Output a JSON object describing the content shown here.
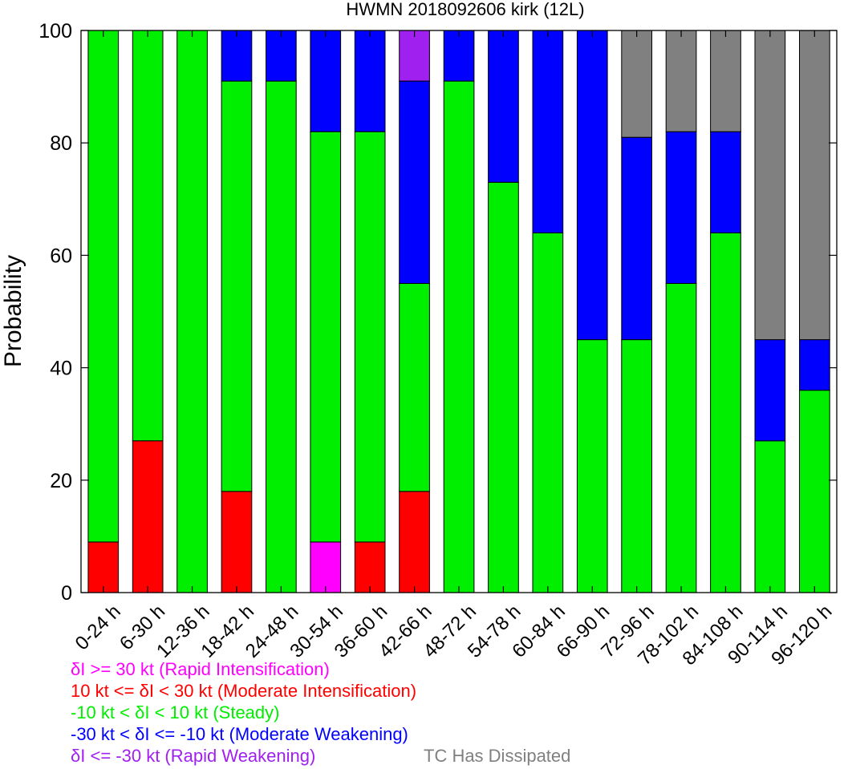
{
  "chart_data": {
    "type": "bar",
    "stacked": true,
    "title": "HWMN 2018092606 kirk (12L)",
    "xlabel": "",
    "ylabel": "Probability",
    "ylim": [
      0,
      100
    ],
    "yticks": [
      0,
      20,
      40,
      60,
      80,
      100
    ],
    "grid": false,
    "legend_position": "bottom",
    "categories": [
      "0-24 h",
      "6-30 h",
      "12-36 h",
      "18-42 h",
      "24-48 h",
      "30-54 h",
      "36-60 h",
      "42-66 h",
      "48-72 h",
      "54-78 h",
      "60-84 h",
      "66-90 h",
      "72-96 h",
      "78-102 h",
      "84-108 h",
      "90-114 h",
      "96-120 h"
    ],
    "series": [
      {
        "key": "ri",
        "name": "δI >= 30 kt (Rapid Intensification)",
        "color": "#ff00ff",
        "values": [
          0,
          0,
          0,
          0,
          0,
          9,
          0,
          0,
          0,
          0,
          0,
          0,
          0,
          0,
          0,
          0,
          0
        ]
      },
      {
        "key": "mi",
        "name": "10 kt <= δI < 30 kt (Moderate Intensification)",
        "color": "#ff0000",
        "values": [
          9,
          27,
          0,
          18,
          0,
          0,
          9,
          18,
          0,
          0,
          0,
          0,
          0,
          0,
          0,
          0,
          0
        ]
      },
      {
        "key": "st",
        "name": "-10 kt < δI < 10 kt (Steady)",
        "color": "#00ee00",
        "values": [
          91,
          73,
          100,
          73,
          91,
          73,
          73,
          37,
          91,
          73,
          64,
          45,
          45,
          55,
          64,
          27,
          36
        ]
      },
      {
        "key": "mw",
        "name": "-30 kt < δI <= -10 kt (Moderate Weakening)",
        "color": "#0000ff",
        "values": [
          0,
          0,
          0,
          9,
          9,
          18,
          18,
          36,
          9,
          27,
          36,
          55,
          36,
          27,
          18,
          18,
          9
        ]
      },
      {
        "key": "rw",
        "name": "δI <= -30 kt (Rapid Weakening)",
        "color": "#a020f0",
        "values": [
          0,
          0,
          0,
          0,
          0,
          0,
          0,
          9,
          0,
          0,
          0,
          0,
          0,
          0,
          0,
          0,
          0
        ]
      },
      {
        "key": "ds",
        "name": "TC Has Dissipated",
        "color": "#808080",
        "values": [
          0,
          0,
          0,
          0,
          0,
          0,
          0,
          0,
          0,
          0,
          0,
          0,
          19,
          18,
          18,
          55,
          55
        ]
      }
    ]
  }
}
